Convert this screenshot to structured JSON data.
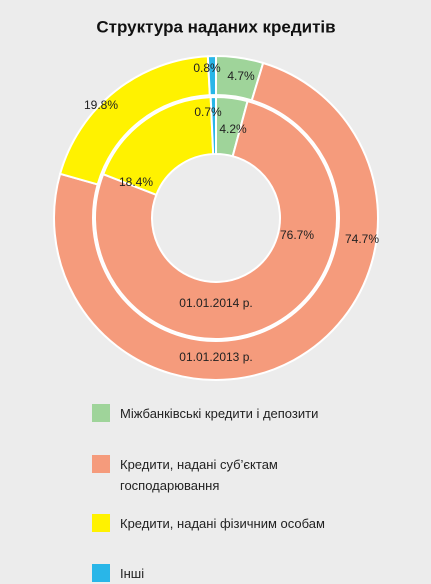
{
  "chart_data": {
    "type": "donut",
    "title": "Структура наданих кредитів",
    "categories": [
      "Міжбанківські кредити і депозити",
      "Кредити, надані суб’єктам господарювання",
      "Кредити, надані фізичним особам",
      "Інші"
    ],
    "colors": [
      "#9fd49a",
      "#f59b7c",
      "#fff200",
      "#29b6e8"
    ],
    "series": [
      {
        "name": "01.01.2013 р.",
        "values": [
          4.7,
          74.7,
          19.8,
          0.8
        ],
        "value_labels": [
          "4.7%",
          "74.7%",
          "19.8%",
          "0.8%"
        ]
      },
      {
        "name": "01.01.2014 р.",
        "values": [
          4.2,
          76.7,
          18.4,
          0.7
        ],
        "value_labels": [
          "4.2%",
          "76.7%",
          "18.4%",
          "0.7%"
        ]
      }
    ]
  }
}
